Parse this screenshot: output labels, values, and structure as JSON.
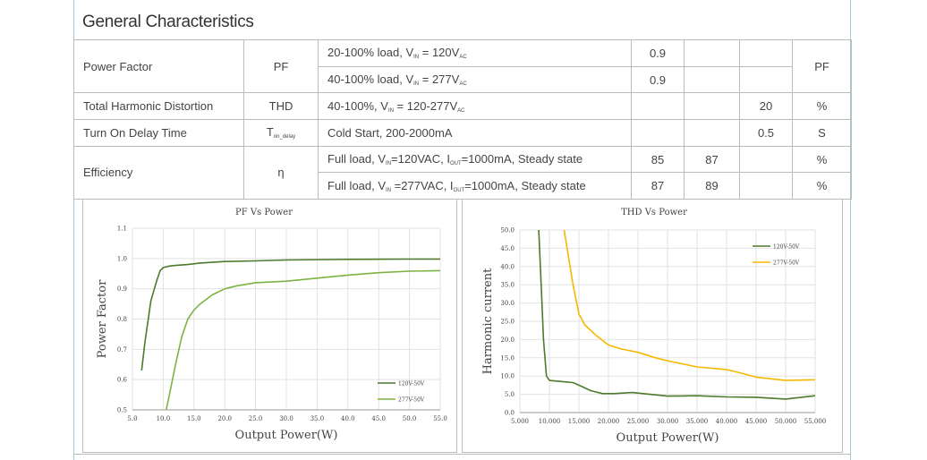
{
  "header": {
    "title": "General Characteristics"
  },
  "table": {
    "rows": [
      {
        "parameter": "Power Factor",
        "symbol": [
          "PF"
        ],
        "condition": [
          "20-100% load, V",
          "IN",
          " = 120V",
          "AC"
        ],
        "min": 0.9,
        "unit": "PF"
      },
      {
        "condition": [
          "40-100% load, V",
          "IN",
          " = 277V",
          "AC"
        ],
        "min": 0.9
      },
      {
        "parameter": "Total Harmonic Distortion",
        "symbol": [
          "THD"
        ],
        "condition": [
          "40-100%, V",
          "IN",
          " = 120-277V",
          "AC"
        ],
        "max": 20,
        "unit": "%"
      },
      {
        "parameter": "Turn On Delay Time",
        "symbol": [
          "T",
          "on_delay"
        ],
        "condition": [
          "Cold Start, 200-2000mA"
        ],
        "max": 0.5,
        "unit": "S"
      },
      {
        "parameter": "Efficiency",
        "symbol": [
          "η"
        ],
        "condition": [
          "Full load, V",
          "IN",
          "=120VAC, I",
          "OUT",
          "=1000mA, Steady state"
        ],
        "min": 85,
        "typ": 87,
        "unit": "%"
      },
      {
        "condition": [
          "Full load, V",
          "IN",
          " =277VAC, I",
          "OUT",
          "=1000mA, Steady state"
        ],
        "min": 87,
        "typ": 89,
        "unit": "%"
      }
    ]
  },
  "chart_data": [
    {
      "type": "line",
      "title": "PF Vs Power",
      "x_label": "Output Power(W)",
      "y_label": "Power Factor",
      "xlim": [
        5,
        55
      ],
      "xticks": [
        {
          "value": 5,
          "label": "5.0"
        },
        {
          "value": 10,
          "label": "10.0"
        },
        {
          "value": 15,
          "label": "15.0"
        },
        {
          "value": 20,
          "label": "20.0"
        },
        {
          "value": 25,
          "label": "25.0"
        },
        {
          "value": 30,
          "label": "30.0"
        },
        {
          "value": 35,
          "label": "35.0"
        },
        {
          "value": 40,
          "label": "40.0"
        },
        {
          "value": 45,
          "label": "45.0"
        },
        {
          "value": 50,
          "label": "50.0"
        },
        {
          "value": 55,
          "label": "55.0"
        }
      ],
      "ylim": [
        0.5,
        1.1
      ],
      "yticks": [
        0.5,
        0.6,
        0.7,
        0.8,
        0.9,
        {
          "value": 1,
          "label": "1.0"
        },
        1.1
      ],
      "grid": true,
      "legend": "lower right",
      "series": [
        {
          "name": "120V-50V",
          "color": "#4e7a2c",
          "x": [
            6.5,
            7,
            8,
            9,
            9.5,
            10,
            11,
            12,
            14,
            16,
            20,
            25,
            30,
            40,
            50,
            55
          ],
          "values": [
            0.63,
            0.72,
            0.86,
            0.93,
            0.96,
            0.97,
            0.975,
            0.977,
            0.98,
            0.985,
            0.99,
            0.992,
            0.995,
            0.997,
            0.998,
            0.998
          ]
        },
        {
          "name": "277V-50V",
          "color": "#7cb342",
          "x": [
            10.5,
            11,
            12,
            13,
            14,
            15,
            16,
            18,
            20,
            22,
            25,
            30,
            35,
            40,
            45,
            50,
            55
          ],
          "values": [
            0.5,
            0.55,
            0.65,
            0.74,
            0.8,
            0.83,
            0.85,
            0.88,
            0.9,
            0.91,
            0.92,
            0.925,
            0.935,
            0.945,
            0.953,
            0.958,
            0.96
          ]
        }
      ]
    },
    {
      "type": "line",
      "title": "THD Vs Power",
      "x_label": "Output Power(W)",
      "y_label": "Harmonic current",
      "xlim": [
        5,
        55
      ],
      "xticks": [
        {
          "value": 5,
          "label": "5.000"
        },
        {
          "value": 10,
          "label": "10.000"
        },
        {
          "value": 15,
          "label": "15.000"
        },
        {
          "value": 20,
          "label": "20.000"
        },
        {
          "value": 25,
          "label": "25.000"
        },
        {
          "value": 30,
          "label": "30.000"
        },
        {
          "value": 35,
          "label": "35.000"
        },
        {
          "value": 40,
          "label": "40.000"
        },
        {
          "value": 45,
          "label": "45.000"
        },
        {
          "value": 50,
          "label": "50.000"
        },
        {
          "value": 55,
          "label": "55.000"
        }
      ],
      "ylim": [
        0,
        50
      ],
      "yticks": [
        {
          "value": 0,
          "label": "0.0"
        },
        {
          "value": 5,
          "label": "5.0"
        },
        {
          "value": 10,
          "label": "10.0"
        },
        {
          "value": 15,
          "label": "15.0"
        },
        {
          "value": 20,
          "label": "20.0"
        },
        {
          "value": 25,
          "label": "25.0"
        },
        {
          "value": 30,
          "label": "30.0"
        },
        {
          "value": 35,
          "label": "35.0"
        },
        {
          "value": 40,
          "label": "40.0"
        },
        {
          "value": 45,
          "label": "45.0"
        },
        {
          "value": 50,
          "label": "50.0"
        }
      ],
      "grid": true,
      "legend": "upper right",
      "series": [
        {
          "name": "120V-50V",
          "color": "#4e7a2c",
          "x": [
            8.2,
            8.6,
            9,
            9.5,
            10,
            12,
            14,
            15,
            17,
            19,
            21,
            24,
            27,
            30,
            35,
            40,
            45,
            50,
            55
          ],
          "values": [
            50,
            35,
            20,
            10,
            8.8,
            8.5,
            8.2,
            7.5,
            6,
            5.2,
            5.2,
            5.5,
            5,
            4.5,
            4.6,
            4.3,
            4.2,
            3.7,
            4.6
          ]
        },
        {
          "name": "277V-50V",
          "color": "#f5b800",
          "x": [
            12.5,
            13,
            14,
            15,
            16,
            18,
            20,
            22,
            25,
            28,
            30,
            35,
            40,
            42,
            45,
            50,
            55
          ],
          "values": [
            50,
            45,
            35,
            27,
            24,
            21,
            18.5,
            17.5,
            16.5,
            15,
            14.2,
            12.5,
            11.8,
            11,
            9.7,
            8.8,
            9
          ]
        }
      ]
    }
  ]
}
